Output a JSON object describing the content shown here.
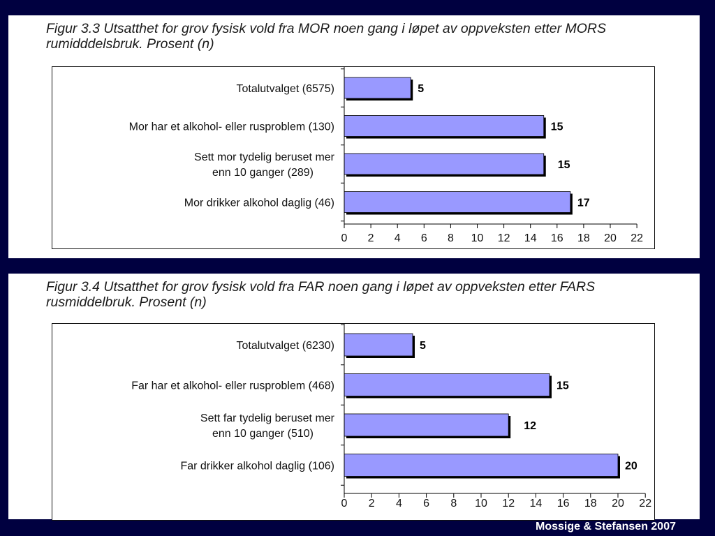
{
  "credit": "Mossige & Stefansen 2007",
  "colors": {
    "bar": "#9999ff",
    "shadow": "#000000",
    "background": "#000040"
  },
  "chart_data": [
    {
      "type": "bar",
      "orientation": "horizontal",
      "title": "Figur 3.3 Utsatthet for grov fysisk vold fra MOR noen gang i løpet av oppveksten etter MORS rumidddelsbruk. Prosent (n)",
      "categories": [
        [
          "Totalutvalget (6575)"
        ],
        [
          "Mor har et alkohol- eller rusproblem (130)"
        ],
        [
          "Sett mor tydelig beruset mer",
          "enn 10 ganger (289)"
        ],
        [
          "Mor drikker alkohol daglig (46)"
        ]
      ],
      "values": [
        5,
        15,
        15,
        17
      ],
      "value_labels": [
        "5",
        "15",
        "15",
        "17"
      ],
      "xlim": [
        0,
        22
      ],
      "xticks": [
        "0",
        "2",
        "4",
        "6",
        "8",
        "10",
        "12",
        "14",
        "16",
        "18",
        "20",
        "22"
      ],
      "grid": false,
      "legend": "none"
    },
    {
      "type": "bar",
      "orientation": "horizontal",
      "title": "Figur 3.4 Utsatthet for grov fysisk vold fra FAR noen gang i løpet av oppveksten etter FARS rusmiddelbruk. Prosent (n)",
      "categories": [
        [
          "Totalutvalget (6230)"
        ],
        [
          "Far har et alkohol- eller rusproblem (468)"
        ],
        [
          "Sett far tydelig beruset mer",
          "enn 10 ganger (510)"
        ],
        [
          "Far drikker alkohol daglig (106)"
        ]
      ],
      "values": [
        5,
        15,
        12,
        20
      ],
      "value_labels": [
        "5",
        "15",
        "12",
        "20"
      ],
      "xlim": [
        0,
        22
      ],
      "xticks": [
        "0",
        "2",
        "4",
        "6",
        "8",
        "10",
        "12",
        "14",
        "16",
        "18",
        "20",
        "22"
      ],
      "grid": false,
      "legend": "none"
    }
  ]
}
